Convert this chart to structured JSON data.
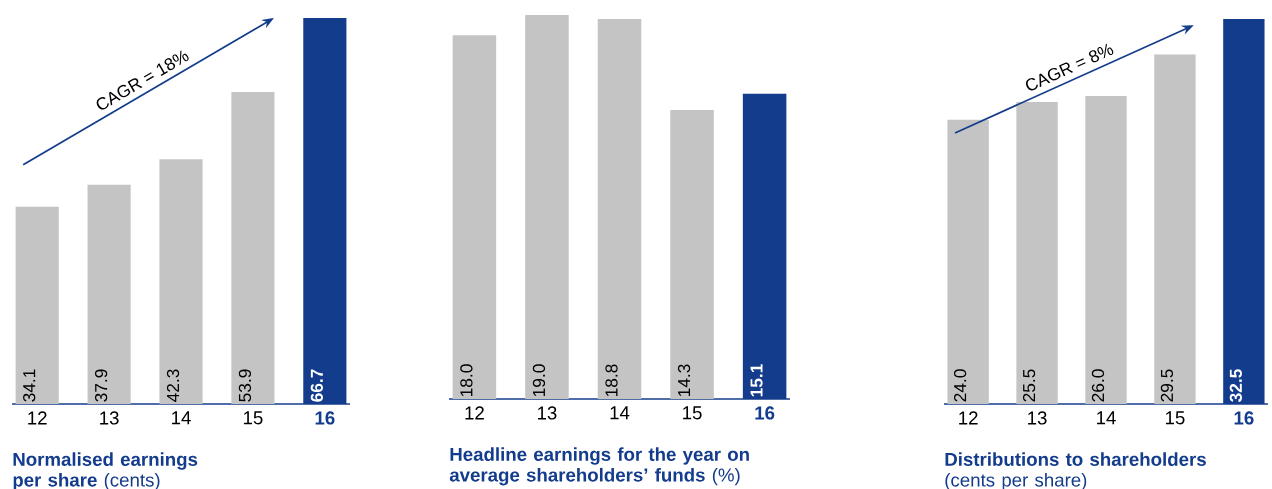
{
  "chart_data": [
    {
      "type": "bar",
      "title": "**Normalised earnings per share** (cents)",
      "categories": [
        "12",
        "13",
        "14",
        "15",
        "16"
      ],
      "values": [
        34.1,
        37.9,
        42.3,
        53.9,
        66.7
      ],
      "value_labels": [
        "34.1",
        "37.9",
        "42.3",
        "53.9",
        "66.7"
      ],
      "colors": [
        "#c4c4c4",
        "#c4c4c4",
        "#c4c4c4",
        "#c4c4c4",
        "#143c8c"
      ],
      "annotations": [
        "CAGR = 18%"
      ]
    },
    {
      "type": "bar",
      "title": "**Headline earnings for the year on average shareholders’ funds** (%)",
      "categories": [
        "12",
        "13",
        "14",
        "15",
        "16"
      ],
      "values": [
        18.0,
        19.0,
        18.8,
        14.3,
        15.1
      ],
      "value_labels": [
        "18.0",
        "19.0",
        "18.8",
        "14.3",
        "15.1"
      ],
      "colors": [
        "#c4c4c4",
        "#c4c4c4",
        "#c4c4c4",
        "#c4c4c4",
        "#143c8c"
      ]
    },
    {
      "type": "bar",
      "title": "**Distributions to shareholders** (cents per share)",
      "categories": [
        "12",
        "13",
        "14",
        "15",
        "16"
      ],
      "values": [
        24.0,
        25.5,
        26.0,
        29.5,
        32.5
      ],
      "value_labels": [
        "24.0",
        "25.5",
        "26.0",
        "29.5",
        "32.5"
      ],
      "colors": [
        "#c4c4c4",
        "#c4c4c4",
        "#c4c4c4",
        "#c4c4c4",
        "#143c8c"
      ],
      "annotations": [
        "CAGR = 8%"
      ]
    }
  ]
}
